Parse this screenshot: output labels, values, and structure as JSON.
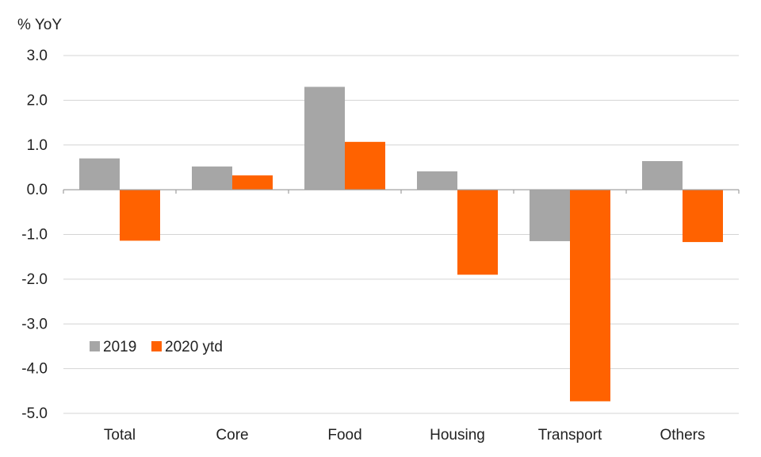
{
  "chart_data": {
    "type": "bar",
    "unit_label": "% YoY",
    "categories": [
      "Total",
      "Core",
      "Food",
      "Housing",
      "Transport",
      "Others"
    ],
    "series": [
      {
        "name": "2019",
        "values": [
          0.7,
          0.52,
          2.3,
          0.41,
          -1.15,
          0.64
        ],
        "color": "#a6a6a6"
      },
      {
        "name": "2020 ytd",
        "values": [
          -1.14,
          0.32,
          1.07,
          -1.9,
          -4.73,
          -1.17
        ],
        "color": "#ff6200"
      }
    ],
    "ylim": [
      -5.0,
      3.0
    ],
    "yticks": [
      "3.0",
      "2.0",
      "1.0",
      "0.0",
      "-1.0",
      "-2.0",
      "-3.0",
      "-4.0",
      "-5.0"
    ],
    "grid": true,
    "legend_position": "lower-left inside plot"
  }
}
